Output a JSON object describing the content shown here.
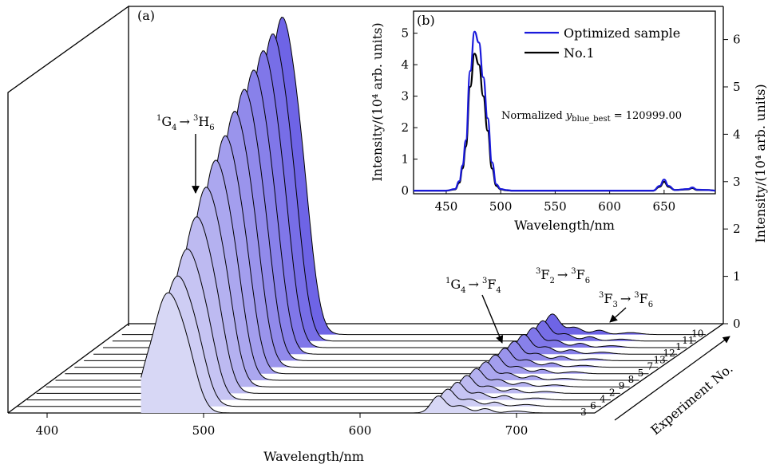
{
  "chart_data": [
    {
      "panel": "(a)",
      "type": "area",
      "xlabel": "Wavelength/nm",
      "ylabel": "Intensity/(10⁴ arb. units)",
      "zlabel": "Experiment No.",
      "xlim": [
        375,
        750
      ],
      "ylim": [
        0,
        6.7
      ],
      "x_ticks": [
        400,
        500,
        600,
        700
      ],
      "y_ticks": [
        0,
        1,
        2,
        3,
        4,
        5,
        6
      ],
      "experiment_order_front_to_back": [
        "3",
        "6",
        "4",
        "2",
        "9",
        "8",
        "5",
        "7",
        "13",
        "12",
        "1",
        "11",
        "10"
      ],
      "series": [
        {
          "name": "3",
          "peak_nm": 476,
          "peak": 2.35
        },
        {
          "name": "6",
          "peak_nm": 476,
          "peak": 2.55
        },
        {
          "name": "4",
          "peak_nm": 476,
          "peak": 2.95
        },
        {
          "name": "2",
          "peak_nm": 476,
          "peak": 3.45
        },
        {
          "name": "9",
          "peak_nm": 476,
          "peak": 3.9
        },
        {
          "name": "8",
          "peak_nm": 476,
          "peak": 4.3
        },
        {
          "name": "5",
          "peak_nm": 476,
          "peak": 4.65
        },
        {
          "name": "7",
          "peak_nm": 476,
          "peak": 5.0
        },
        {
          "name": "13",
          "peak_nm": 476,
          "peak": 5.3
        },
        {
          "name": "12",
          "peak_nm": 476,
          "peak": 5.55
        },
        {
          "name": "1",
          "peak_nm": 476,
          "peak": 5.8
        },
        {
          "name": "11",
          "peak_nm": 476,
          "peak": 6.0
        },
        {
          "name": "10",
          "peak_nm": 476,
          "peak": 6.2
        }
      ],
      "annotations": [
        {
          "text_main": "G",
          "sup1": "1",
          "sub1": "4",
          "arrow": "→",
          "sup2": "3",
          "text2": "H",
          "sub2": "6"
        },
        {
          "text_main": "G",
          "sup1": "1",
          "sub1": "4",
          "arrow": "→",
          "sup2": "3",
          "text2": "F",
          "sub2": "4"
        },
        {
          "text_main": "F",
          "sup1": "3",
          "sub1": "2",
          "arrow": "→",
          "sup2": "3",
          "text2": "F",
          "sub2": "6"
        },
        {
          "text_main": "F",
          "sup1": "3",
          "sub1": "3",
          "arrow": "→",
          "sup2": "3",
          "text2": "F",
          "sub2": "6"
        }
      ]
    },
    {
      "panel": "(b)",
      "type": "line",
      "xlabel": "Wavelength/nm",
      "ylabel": "Intensity/(10⁴ arb. units)",
      "xlim": [
        420,
        697
      ],
      "ylim": [
        -0.1,
        5.7
      ],
      "x_ticks": [
        450,
        500,
        550,
        600,
        650
      ],
      "y_ticks": [
        0,
        1,
        2,
        3,
        4,
        5
      ],
      "legend": "top-right",
      "annotation": {
        "prefix": "Normalized ",
        "var": "y",
        "sub": "blue_best",
        "suffix": " = 120999.00"
      },
      "series": [
        {
          "name": "Optimized sample",
          "color": "#1a1adb",
          "peak": 5.05,
          "x": [
            420,
            450,
            458,
            462,
            465,
            468,
            472,
            476,
            480,
            484,
            488,
            492,
            496,
            500,
            505,
            510,
            520,
            550,
            600,
            640,
            646,
            650,
            654,
            660,
            672,
            676,
            680,
            690,
            697
          ],
          "y": [
            0,
            0,
            0.05,
            0.3,
            0.8,
            1.6,
            3.8,
            5.05,
            4.7,
            3.6,
            2.3,
            0.9,
            0.2,
            0.05,
            0.02,
            0,
            0,
            0,
            0,
            0,
            0.15,
            0.35,
            0.15,
            0.02,
            0.05,
            0.1,
            0.03,
            0.02,
            0
          ]
        },
        {
          "name": "No.1",
          "color": "#000000",
          "peak": 4.35,
          "x": [
            420,
            450,
            458,
            462,
            465,
            468,
            472,
            476,
            480,
            484,
            488,
            492,
            496,
            500,
            505,
            510,
            520,
            550,
            600,
            640,
            646,
            650,
            654,
            660,
            672,
            676,
            680,
            690,
            697
          ],
          "y": [
            0,
            0,
            0.04,
            0.25,
            0.7,
            1.4,
            3.3,
            4.35,
            4.0,
            3.0,
            1.9,
            0.7,
            0.15,
            0.04,
            0.01,
            0,
            0,
            0,
            0,
            0,
            0.12,
            0.28,
            0.12,
            0.02,
            0.04,
            0.08,
            0.02,
            0.02,
            0
          ]
        }
      ]
    }
  ]
}
